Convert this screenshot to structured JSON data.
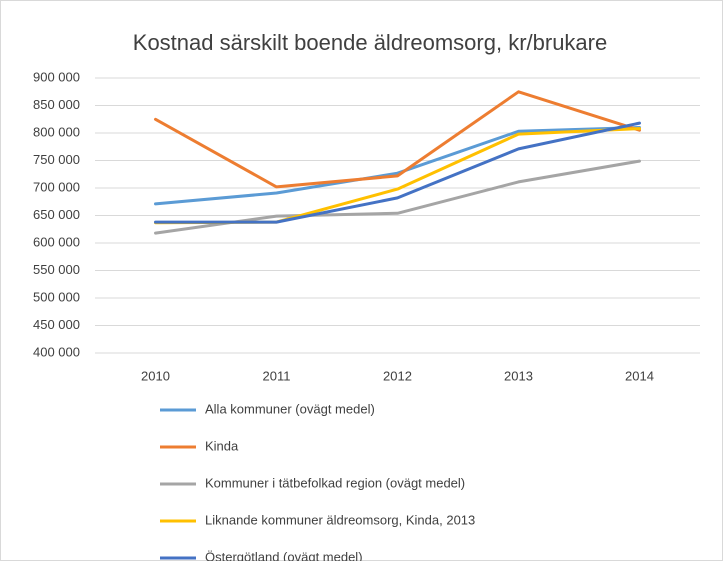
{
  "chart_data": {
    "type": "line",
    "title": "Kostnad särskilt boende äldreomsorg, kr/brukare",
    "categories": [
      "2010",
      "2011",
      "2012",
      "2013",
      "2014"
    ],
    "series": [
      {
        "name": "Alla kommuner (ovägt medel)",
        "color": "#5b9bd5",
        "values": [
          671000,
          691000,
          727000,
          803000,
          810000
        ]
      },
      {
        "name": "Kinda",
        "color": "#ed7d31",
        "values": [
          825000,
          702000,
          722000,
          875000,
          805000
        ]
      },
      {
        "name": "Kommuner i tätbefolkad region (ovägt medel)",
        "color": "#a5a5a5",
        "values": [
          618000,
          649000,
          654000,
          711000,
          749000
        ]
      },
      {
        "name": "Liknande kommuner äldreomsorg, Kinda, 2013",
        "color": "#ffc000",
        "values": [
          637000,
          638000,
          698000,
          798000,
          808000
        ]
      },
      {
        "name": "Östergötland (ovägt medel)",
        "color": "#4472c4",
        "values": [
          638000,
          638000,
          682000,
          771000,
          818000
        ]
      }
    ],
    "ylim": [
      400000,
      900000
    ],
    "yticks": [
      {
        "value": 400000,
        "label": "400 000"
      },
      {
        "value": 450000,
        "label": "450 000"
      },
      {
        "value": 500000,
        "label": "500 000"
      },
      {
        "value": 550000,
        "label": "550 000"
      },
      {
        "value": 600000,
        "label": "600 000"
      },
      {
        "value": 650000,
        "label": "650 000"
      },
      {
        "value": 700000,
        "label": "700 000"
      },
      {
        "value": 750000,
        "label": "750 000"
      },
      {
        "value": 800000,
        "label": "800 000"
      },
      {
        "value": 850000,
        "label": "850 000"
      },
      {
        "value": 900000,
        "label": "900 000"
      }
    ],
    "grid": true,
    "legend": "bottom"
  }
}
